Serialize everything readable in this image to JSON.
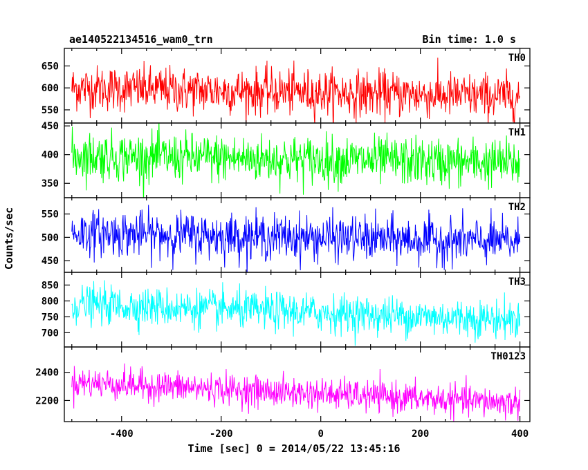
{
  "header": {
    "title": "ae140522134516_wam0_trn",
    "bin_time": "Bin time: 1.0 s"
  },
  "chart_data": {
    "type": "line",
    "title": "ae140522134516_wam0_trn",
    "xlabel": "Time [sec] 0 = 2014/05/22 13:45:16",
    "ylabel": "Counts/sec",
    "xlim": [
      -515,
      420
    ],
    "xticks": [
      -400,
      -200,
      0,
      200,
      400
    ],
    "x_start": -500,
    "x_end": 400,
    "x_step": 1,
    "grid": false,
    "panels": [
      {
        "name": "TH0",
        "color": "#ff0000",
        "ylim": [
          520,
          690
        ],
        "yticks": [
          550,
          600,
          650
        ],
        "mean_start": 600,
        "mean_end": 580,
        "spread": 26
      },
      {
        "name": "TH1",
        "color": "#00ff00",
        "ylim": [
          325,
          455
        ],
        "yticks": [
          350,
          400,
          450
        ],
        "mean_start": 398,
        "mean_end": 385,
        "spread": 21
      },
      {
        "name": "TH2",
        "color": "#0000ff",
        "ylim": [
          425,
          585
        ],
        "yticks": [
          450,
          500,
          550
        ],
        "mean_start": 510,
        "mean_end": 490,
        "spread": 24
      },
      {
        "name": "TH3",
        "color": "#00ffff",
        "ylim": [
          655,
          890
        ],
        "yticks": [
          700,
          750,
          800,
          850
        ],
        "mean_start": 790,
        "mean_end": 740,
        "spread": 30
      },
      {
        "name": "TH0123",
        "color": "#ff00ff",
        "ylim": [
          2050,
          2580
        ],
        "yticks": [
          2200,
          2400
        ],
        "mean_start": 2330,
        "mean_end": 2180,
        "spread": 55
      }
    ]
  }
}
